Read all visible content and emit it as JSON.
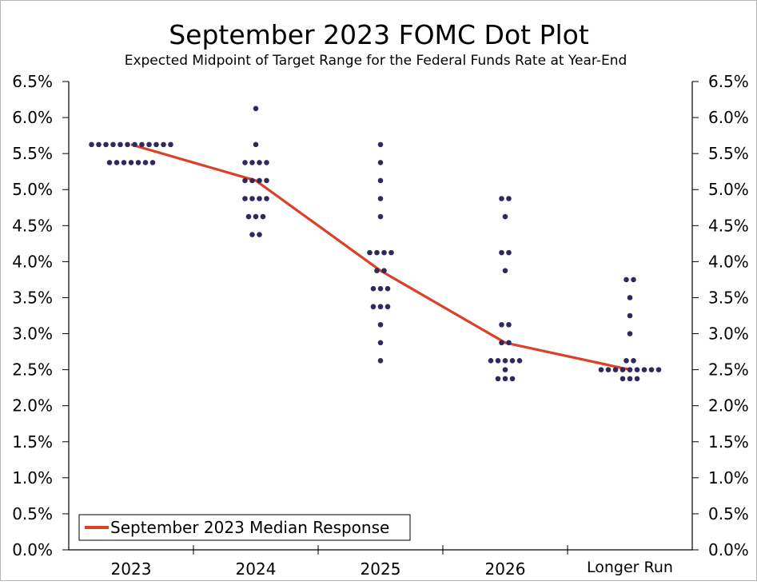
{
  "chart_data": {
    "type": "scatter",
    "title": "September 2023 FOMC Dot Plot",
    "subtitle": "Expected Midpoint of Target Range for the Federal Funds Rate at Year-End",
    "categories": [
      "2023",
      "2024",
      "2025",
      "2026",
      "Longer Run"
    ],
    "ylim": [
      0,
      6.5
    ],
    "ytick_values": [
      0,
      0.5,
      1,
      1.5,
      2,
      2.5,
      3,
      3.5,
      4,
      4.5,
      5,
      5.5,
      6,
      6.5
    ],
    "ytick_labels": [
      "0.0%",
      "0.5%",
      "1.0%",
      "1.5%",
      "2.0%",
      "2.5%",
      "3.0%",
      "3.5%",
      "4.0%",
      "4.5%",
      "5.0%",
      "5.5%",
      "6.0%",
      "6.5%"
    ],
    "dot_color": "#2e2a5c",
    "median_color": "#d9412b",
    "dots": [
      {
        "category": "2023",
        "levels": [
          {
            "rate": 5.625,
            "count": 12
          },
          {
            "rate": 5.375,
            "count": 7
          }
        ]
      },
      {
        "category": "2024",
        "levels": [
          {
            "rate": 6.125,
            "count": 1
          },
          {
            "rate": 5.625,
            "count": 1
          },
          {
            "rate": 5.375,
            "count": 4
          },
          {
            "rate": 5.125,
            "count": 4
          },
          {
            "rate": 4.875,
            "count": 4
          },
          {
            "rate": 4.625,
            "count": 3
          },
          {
            "rate": 4.375,
            "count": 2
          }
        ]
      },
      {
        "category": "2025",
        "levels": [
          {
            "rate": 5.625,
            "count": 1
          },
          {
            "rate": 5.375,
            "count": 1
          },
          {
            "rate": 5.125,
            "count": 1
          },
          {
            "rate": 4.875,
            "count": 1
          },
          {
            "rate": 4.625,
            "count": 1
          },
          {
            "rate": 4.125,
            "count": 4
          },
          {
            "rate": 3.875,
            "count": 2
          },
          {
            "rate": 3.625,
            "count": 3
          },
          {
            "rate": 3.375,
            "count": 3
          },
          {
            "rate": 3.125,
            "count": 1
          },
          {
            "rate": 2.875,
            "count": 1
          },
          {
            "rate": 2.625,
            "count": 1
          }
        ]
      },
      {
        "category": "2026",
        "levels": [
          {
            "rate": 4.875,
            "count": 2
          },
          {
            "rate": 4.625,
            "count": 1
          },
          {
            "rate": 4.125,
            "count": 2
          },
          {
            "rate": 3.875,
            "count": 1
          },
          {
            "rate": 3.125,
            "count": 2
          },
          {
            "rate": 2.875,
            "count": 2
          },
          {
            "rate": 2.625,
            "count": 5
          },
          {
            "rate": 2.5,
            "count": 1
          },
          {
            "rate": 2.375,
            "count": 3
          }
        ]
      },
      {
        "category": "Longer Run",
        "levels": [
          {
            "rate": 3.75,
            "count": 2
          },
          {
            "rate": 3.5,
            "count": 1
          },
          {
            "rate": 3.25,
            "count": 1
          },
          {
            "rate": 3.0,
            "count": 1
          },
          {
            "rate": 2.625,
            "count": 2
          },
          {
            "rate": 2.5,
            "count": 9
          },
          {
            "rate": 2.375,
            "count": 3
          }
        ]
      }
    ],
    "series": [
      {
        "name": "September 2023 Median Response",
        "values": [
          5.625,
          5.125,
          3.875,
          2.875,
          2.5
        ]
      }
    ],
    "legend": {
      "position": "bottom-left",
      "label": "September 2023 Median Response"
    }
  }
}
